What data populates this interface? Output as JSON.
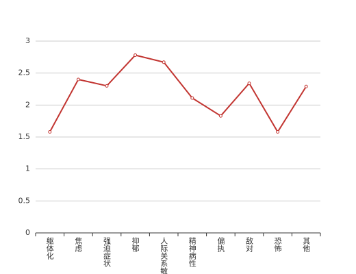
{
  "chart_data": {
    "type": "line",
    "categories": [
      "躯体化",
      "焦虑",
      "强迫症状",
      "抑郁",
      "人际关系敏感",
      "精神病性",
      "偏执",
      "敌对",
      "恐怖",
      "其他"
    ],
    "values": [
      1.58,
      2.4,
      2.3,
      2.78,
      2.67,
      2.11,
      1.83,
      2.34,
      1.58,
      2.29
    ],
    "color": "#c23531",
    "ylim": [
      0,
      3
    ],
    "yticks": [
      0,
      0.5,
      1,
      1.5,
      2,
      2.5,
      3
    ],
    "grid": true
  }
}
